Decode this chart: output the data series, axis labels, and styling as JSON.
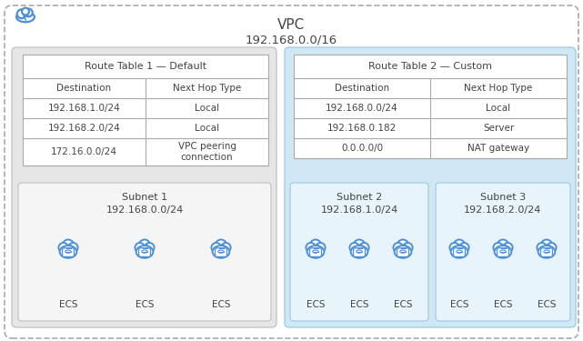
{
  "title": "VPC",
  "subtitle": "192.168.0.0/16",
  "table1_title": "Route Table 1 — Default",
  "table1_rows": [
    [
      "Destination",
      "Next Hop Type"
    ],
    [
      "192.168.1.0/24",
      "Local"
    ],
    [
      "192.168.2.0/24",
      "Local"
    ],
    [
      "172.16.0.0/24",
      "VPC peering\nconnection"
    ]
  ],
  "table2_title": "Route Table 2 — Custom",
  "table2_rows": [
    [
      "Destination",
      "Next Hop Type"
    ],
    [
      "192.168.0.0/24",
      "Local"
    ],
    [
      "192.168.0.182",
      "Server"
    ],
    [
      "0.0.0.0/0",
      "NAT gateway"
    ]
  ],
  "subnet1_title": "Subnet 1",
  "subnet1_ip": "192.168.0.0/24",
  "subnet2_title": "Subnet 2",
  "subnet2_ip": "192.168.1.0/24",
  "subnet3_title": "Subnet 3",
  "subnet3_ip": "192.168.2.0/24",
  "ecs_color": "#4a90d9",
  "text_color": "#444444",
  "left_panel_bg": "#e4e4e4",
  "right_panel_bg": "#d4e9f7",
  "subnet1_bg": "#efefef",
  "subnet23_bg": "#e8f4fb",
  "vpc_border": "#aaaaaa",
  "table_border": "#aaaaaa",
  "body_fontsize": 7.5,
  "title_fontsize": 11
}
